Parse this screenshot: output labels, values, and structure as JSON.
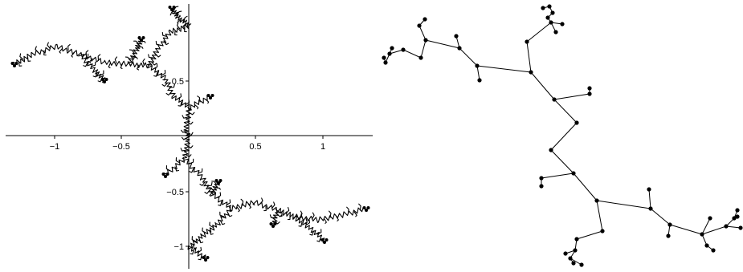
{
  "left_plot": {
    "x_tick_labels": [
      "−1",
      "−0.5",
      "0.5",
      "1"
    ],
    "y_tick_labels": [
      "0.5",
      "−0.5",
      "−1"
    ],
    "x_range": [
      -1.4,
      1.4
    ],
    "y_range": [
      -1.15,
      1.15
    ]
  },
  "colors": {
    "ink": "#000000",
    "background": "#ffffff"
  }
}
